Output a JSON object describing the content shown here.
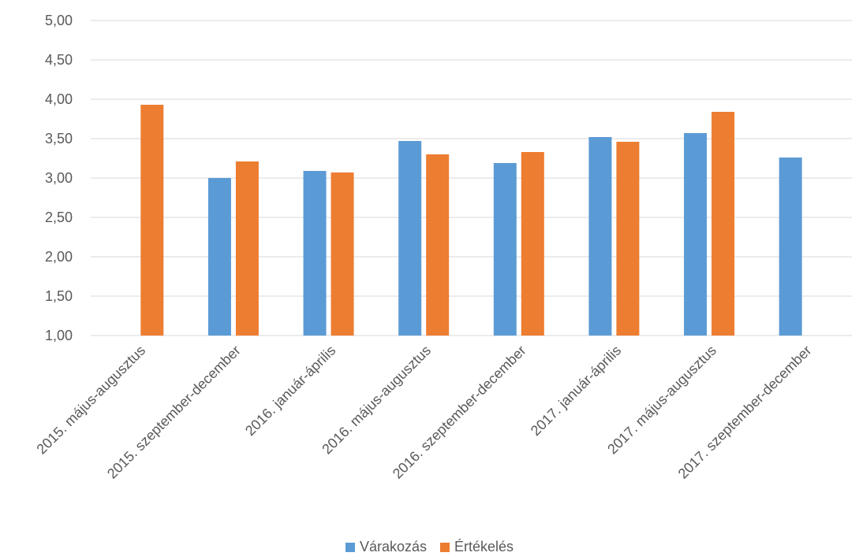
{
  "chart_data": {
    "type": "bar",
    "title": "",
    "xlabel": "",
    "ylabel": "",
    "ylim": [
      1.0,
      5.0
    ],
    "yticks": [
      "1,00",
      "1,50",
      "2,00",
      "2,50",
      "3,00",
      "3,50",
      "4,00",
      "4,50",
      "5,00"
    ],
    "categories": [
      "2015. május-augusztus",
      "2015. szeptember-december",
      "2016. január-április",
      "2016. május-augusztus",
      "2016. szeptember-december",
      "2017. január-április",
      "2017. május-augusztus",
      "2017. szeptember-december"
    ],
    "series": [
      {
        "name": "Várakozás",
        "color": "#5b9bd5",
        "values": [
          null,
          3.0,
          3.09,
          3.47,
          3.19,
          3.52,
          3.57,
          3.26
        ]
      },
      {
        "name": "Értékelés",
        "color": "#ed7d31",
        "values": [
          3.93,
          3.21,
          3.07,
          3.3,
          3.33,
          3.46,
          3.84,
          null
        ]
      }
    ],
    "grid": true,
    "legend_position": "bottom"
  }
}
